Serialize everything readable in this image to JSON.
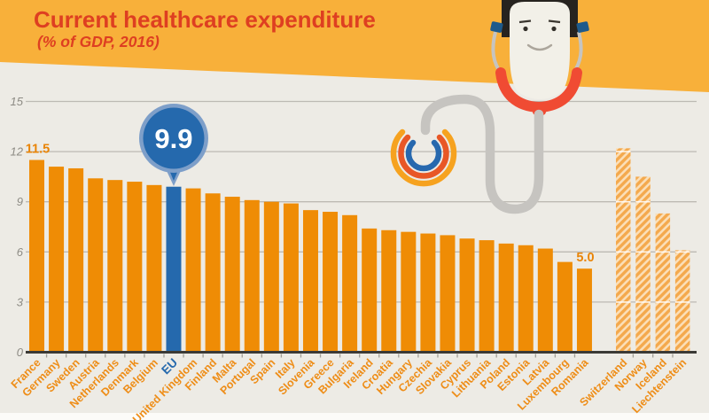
{
  "header": {
    "title": "Current healthcare expenditure",
    "subtitle": "(% of GDP, 2016)"
  },
  "colors": {
    "background": "#edebe5",
    "footer": "#fcfbf8",
    "band": "#f8b03a",
    "title_text": "#de3f21",
    "bar": "#ef8c05",
    "eu_bar": "#2569ad",
    "eu_ring": "#7e9fc9",
    "hatch_base": "#fbdfb8",
    "hatch_stripe": "#f4a94d",
    "grid": "#bdbab3",
    "baseline": "#3b3a36",
    "axis_text": "#8d8b84",
    "country_label": "#ee8d17",
    "value_label": "#e98406",
    "bubble_text": "#ffffff",
    "stethoscope_tube": "#c6c4c0",
    "stethoscope_red": "#f04b33"
  },
  "chart_data": {
    "type": "bar",
    "title": "Current healthcare expenditure",
    "subtitle": "(% of GDP, 2016)",
    "ylabel": "% of GDP",
    "ylim": [
      0,
      15
    ],
    "yticks": [
      0,
      3,
      6,
      9,
      12,
      15
    ],
    "grid": true,
    "legend": "none",
    "categories": [
      "France",
      "Germany",
      "Sweden",
      "Austria",
      "Netherlands",
      "Denmark",
      "Belgium",
      "EU",
      "United Kingdom",
      "Finland",
      "Malta",
      "Portugal",
      "Spain",
      "Italy",
      "Slovenia",
      "Greece",
      "Bulgaria",
      "Ireland",
      "Croatia",
      "Hungary",
      "Czechia",
      "Slovakia",
      "Cyprus",
      "Lithuania",
      "Poland",
      "Estonia",
      "Latvia",
      "Luxembourg",
      "Romania",
      "Switzerland",
      "Norway",
      "Iceland",
      "Liechtenstein"
    ],
    "values": [
      11.5,
      11.1,
      11.0,
      10.4,
      10.3,
      10.2,
      10.0,
      9.9,
      9.8,
      9.5,
      9.3,
      9.1,
      9.0,
      8.9,
      8.5,
      8.4,
      8.2,
      7.4,
      7.3,
      7.2,
      7.1,
      7.0,
      6.8,
      6.7,
      6.5,
      6.4,
      6.2,
      5.4,
      5.0,
      12.2,
      10.5,
      8.3,
      6.1
    ],
    "highlight": {
      "category": "EU",
      "value": 9.9,
      "callout_text": "9.9"
    },
    "annotations": [
      {
        "category": "France",
        "text": "11.5"
      },
      {
        "category": "Romania",
        "text": "5.0"
      }
    ],
    "hatched_categories": [
      "Switzerland",
      "Norway",
      "Iceland",
      "Liechtenstein"
    ]
  }
}
